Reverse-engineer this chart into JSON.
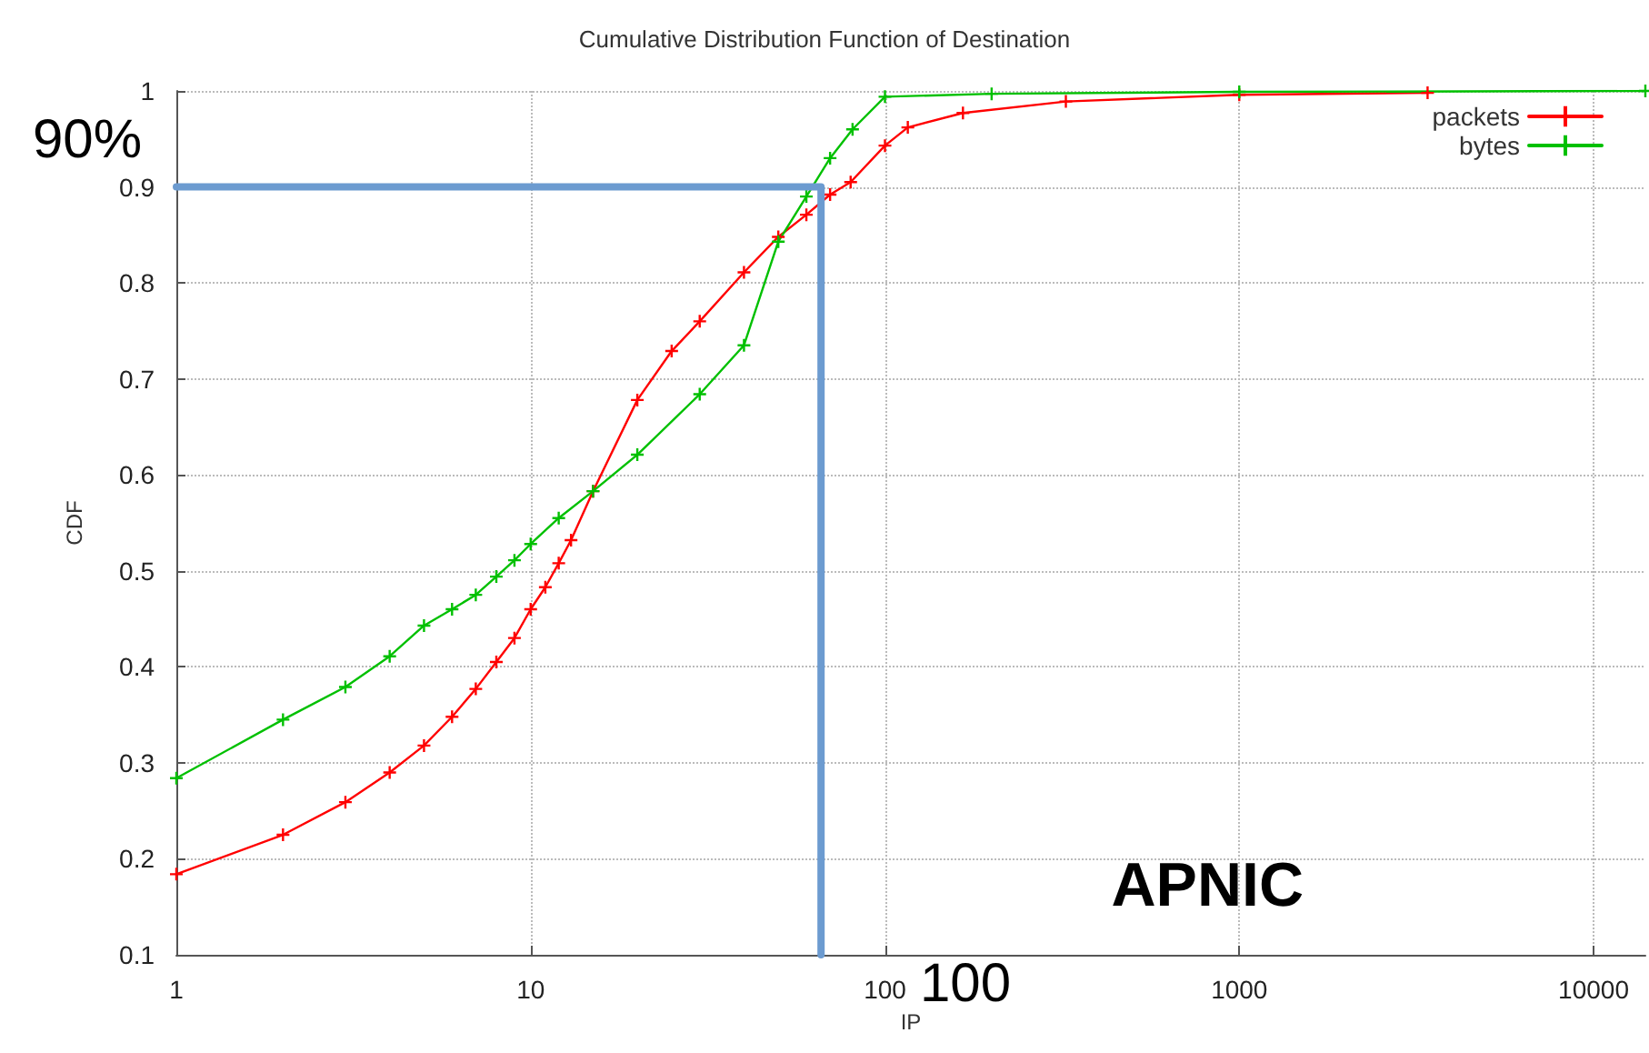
{
  "chart_data": {
    "type": "line",
    "title": "Cumulative Distribution Function of Destination",
    "xlabel": "IP",
    "ylabel": "CDF",
    "xlim": [
      1,
      14000
    ],
    "xticks": [
      1,
      10,
      100,
      1000,
      10000
    ],
    "ylim": [
      0.1,
      1
    ],
    "yticks": [
      0.1,
      0.2,
      0.3,
      0.4,
      0.5,
      0.6,
      0.7,
      0.8,
      0.9,
      1
    ],
    "log": "x",
    "grid": true,
    "legend": "top right",
    "marker": "cross",
    "series": [
      {
        "name": "packets",
        "color": "#ff0000",
        "x": [
          1,
          2,
          3,
          4,
          5,
          6,
          7,
          8,
          9,
          10,
          11,
          12,
          13,
          15,
          20,
          25,
          30,
          40,
          50,
          60,
          70,
          80,
          100,
          116,
          166,
          324,
          1000,
          3400
        ],
        "values": [
          0.184,
          0.225,
          0.259,
          0.29,
          0.318,
          0.348,
          0.377,
          0.405,
          0.43,
          0.46,
          0.483,
          0.508,
          0.532,
          0.583,
          0.678,
          0.729,
          0.76,
          0.811,
          0.848,
          0.871,
          0.892,
          0.905,
          0.943,
          0.962,
          0.977,
          0.989,
          0.996,
          0.998
        ]
      },
      {
        "name": "bytes",
        "color": "#00c000",
        "x": [
          1,
          2,
          3,
          4,
          5,
          6,
          7,
          8,
          9,
          10,
          12,
          15,
          20,
          30,
          40,
          50,
          60,
          70,
          81,
          100,
          200,
          1000,
          14000
        ],
        "values": [
          0.284,
          0.345,
          0.379,
          0.411,
          0.443,
          0.46,
          0.475,
          0.494,
          0.511,
          0.528,
          0.555,
          0.583,
          0.621,
          0.684,
          0.735,
          0.843,
          0.89,
          0.93,
          0.96,
          0.994,
          0.997,
          0.999,
          1
        ]
      },
      {
        "color": "#6c9bd0",
        "marker": "none",
        "line_style": "solid",
        "x": [
          1,
          66,
          66
        ],
        "values": [
          0.9,
          0.9,
          0.1
        ]
      }
    ],
    "annotations": [
      "90%",
      "100",
      "APNIC"
    ]
  }
}
